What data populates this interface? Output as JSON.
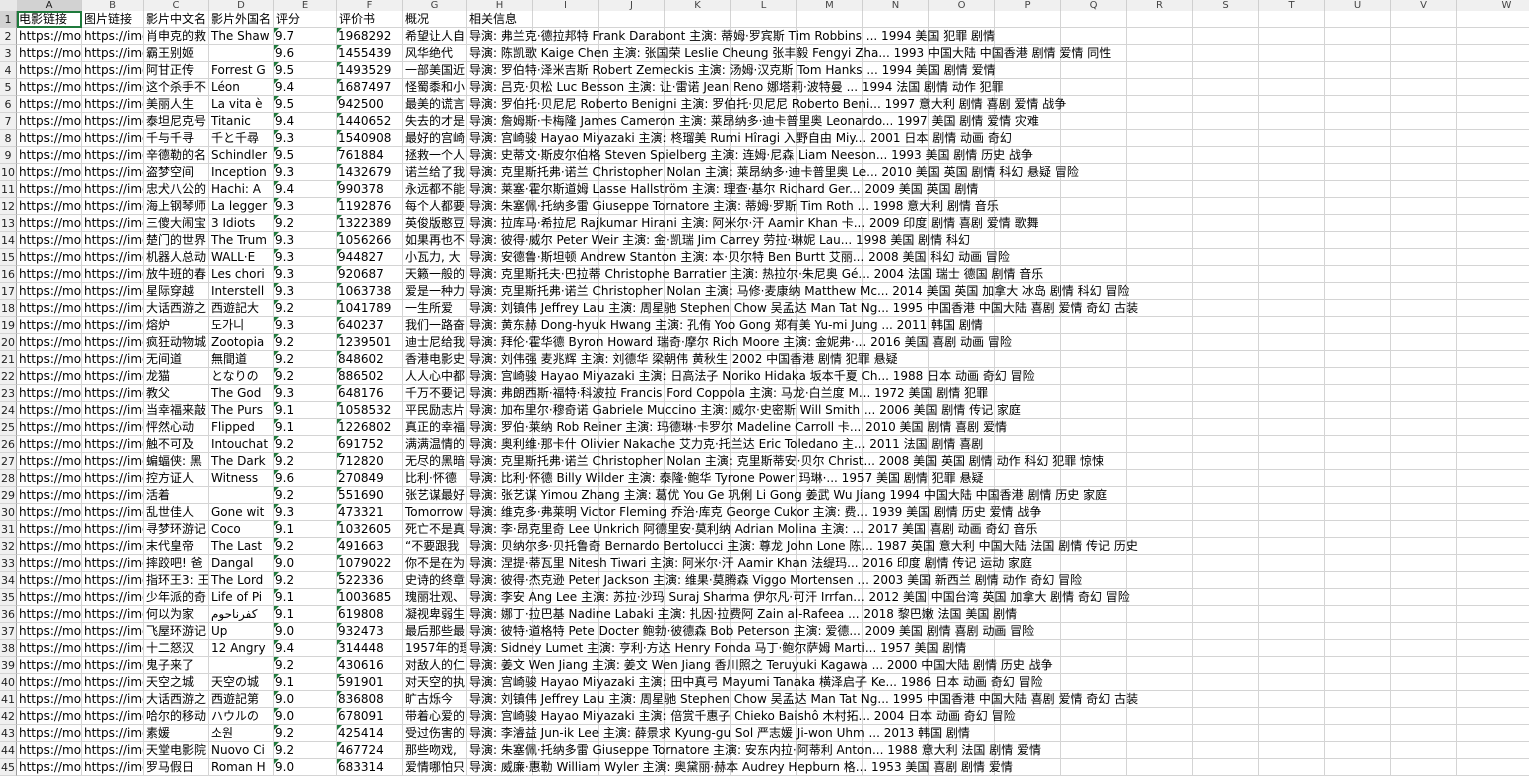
{
  "columns": [
    "A",
    "B",
    "C",
    "D",
    "E",
    "F",
    "G",
    "H",
    "I",
    "J",
    "K",
    "L",
    "M",
    "N",
    "O",
    "P",
    "Q",
    "R",
    "S",
    "T",
    "U",
    "V",
    "W"
  ],
  "header_row": [
    "电影链接",
    "图片链接",
    "影片中文名",
    "影片外国名",
    "评分",
    "评价书",
    "概况",
    "相关信息"
  ],
  "rows": [
    [
      "https://mo",
      "https://img",
      "肖申克的救",
      "The Shaw",
      "9.7",
      "1968292",
      "希望让人自",
      "导演: 弗兰克·德拉邦特 Frank Darabont   主演: 蒂姆·罗宾斯 Tim Robbins ...  1994  美国  犯罪 剧情"
    ],
    [
      "https://mo",
      "https://img",
      "霸王别姬",
      "",
      "9.6",
      "1455439",
      "风华绝代",
      "导演: 陈凯歌 Kaige Chen   主演: 张国荣 Leslie Cheung  张丰毅 Fengyi Zha...  1993  中国大陆 中国香港  剧情 爱情 同性"
    ],
    [
      "https://mo",
      "https://img",
      "阿甘正传",
      "Forrest G",
      "9.5",
      "1493529",
      "一部美国近",
      "导演: 罗伯特·泽米吉斯 Robert Zemeckis   主演: 汤姆·汉克斯 Tom Hanks  ...  1994  美国  剧情 爱情"
    ],
    [
      "https://mo",
      "https://img",
      "这个杀手不",
      "Léon",
      "9.4",
      "1687497",
      "怪蜀黍和小",
      "导演: 吕克·贝松 Luc Besson   主演: 让·雷诺 Jean Reno  娜塔莉·波特曼 ...  1994  法国  剧情 动作 犯罪"
    ],
    [
      "https://mo",
      "https://img",
      "美丽人生",
      "La vita è",
      "9.5",
      "942500",
      "最美的谎言",
      "导演: 罗伯托·贝尼尼 Roberto Benigni   主演: 罗伯托·贝尼尼 Roberto Beni...  1997  意大利  剧情 喜剧 爱情 战争"
    ],
    [
      "https://mo",
      "https://img",
      "泰坦尼克号",
      "Titanic",
      "9.4",
      "1440652",
      "失去的才是",
      "导演: 詹姆斯·卡梅隆 James Cameron   主演: 莱昂纳多·迪卡普里奥 Leonardo...  1997  美国  剧情 爱情 灾难"
    ],
    [
      "https://mo",
      "https://img",
      "千与千寻",
      "千と千尋",
      "9.3",
      "1540908",
      "最好的宫崎",
      "导演: 宫崎骏 Hayao Miyazaki   主演: 柊瑠美 Rumi Hîragi  入野自由 Miy...  2001  日本  剧情 动画 奇幻"
    ],
    [
      "https://mo",
      "https://img",
      "辛德勒的名",
      "Schindler",
      "9.5",
      "761884",
      "拯救一个人",
      "导演: 史蒂文·斯皮尔伯格 Steven Spielberg   主演: 连姆·尼森 Liam Neeson...  1993  美国  剧情 历史 战争"
    ],
    [
      "https://mo",
      "https://img",
      "盗梦空间",
      "Inception",
      "9.3",
      "1432679",
      "诺兰给了我",
      "导演: 克里斯托弗·诺兰 Christopher Nolan   主演: 莱昂纳多·迪卡普里奥 Le...  2010  美国 英国  剧情 科幻 悬疑 冒险"
    ],
    [
      "https://mo",
      "https://img",
      "忠犬八公的",
      "Hachi: A",
      "9.4",
      "990378",
      "永远都不能",
      "导演: 莱塞·霍尔斯道姆 Lasse Hallström   主演: 理查·基尔 Richard Ger...  2009  美国 英国  剧情"
    ],
    [
      "https://mo",
      "https://img",
      "海上钢琴师",
      "La legger",
      "9.3",
      "1192876",
      "每个人都要",
      "导演: 朱塞佩·托纳多雷 Giuseppe Tornatore   主演: 蒂姆·罗斯 Tim Roth  ...  1998  意大利  剧情 音乐"
    ],
    [
      "https://mo",
      "https://img",
      "三傻大闹宝",
      "3 Idiots",
      "9.2",
      "1322389",
      "英俊版憨豆",
      "导演: 拉库马·希拉尼 Rajkumar Hirani   主演: 阿米尔·汗 Aamir Khan  卡...  2009  印度  剧情 喜剧 爱情 歌舞"
    ],
    [
      "https://mo",
      "https://img",
      "楚门的世界",
      "The Trum",
      "9.3",
      "1056266",
      "如果再也不",
      "导演: 彼得·威尔 Peter Weir   主演: 金·凯瑞 Jim Carrey  劳拉·琳妮 Lau...  1998  美国  剧情 科幻"
    ],
    [
      "https://mo",
      "https://img",
      "机器人总动",
      "WALL·E",
      "9.3",
      "944827",
      "小瓦力, 大",
      "导演: 安德鲁·斯坦顿 Andrew Stanton   主演: 本·贝尔特 Ben Burtt  艾丽...  2008  美国  科幻 动画 冒险"
    ],
    [
      "https://mo",
      "https://img",
      "放牛班的春",
      "Les chori",
      "9.3",
      "920687",
      "天籁一般的",
      "导演: 克里斯托夫·巴拉蒂 Christophe Barratier   主演: 热拉尔·朱尼奥 Gé...  2004  法国 瑞士 德国  剧情 音乐"
    ],
    [
      "https://mo",
      "https://img",
      "星际穿越",
      "Interstell",
      "9.3",
      "1063738",
      "爱是一种力",
      "导演: 克里斯托弗·诺兰 Christopher Nolan   主演: 马修·麦康纳 Matthew Mc...  2014  美国 英国 加拿大 冰岛  剧情 科幻 冒险"
    ],
    [
      "https://mo",
      "https://img",
      "大话西游之",
      "西遊記大",
      "9.2",
      "1041789",
      "一生所爱",
      "导演: 刘镇伟 Jeffrey Lau   主演: 周星驰 Stephen Chow  吴孟达 Man Tat Ng...  1995  中国香港 中国大陆  喜剧 爱情 奇幻 古装"
    ],
    [
      "https://mo",
      "https://img",
      "熔炉",
      "도가니",
      "9.3",
      "640237",
      "我们一路奋",
      "导演: 黄东赫 Dong-hyuk Hwang   主演: 孔侑 Yoo Gong  郑有美 Yu-mi Jung ...  2011  韩国  剧情"
    ],
    [
      "https://mo",
      "https://img",
      "疯狂动物城",
      "Zootopia",
      "9.2",
      "1239501",
      "迪士尼给我",
      "导演: 拜伦·霍华德 Byron Howard  瑞奇·摩尔 Rich Moore   主演: 金妮弗·...  2016  美国  喜剧 动画 冒险"
    ],
    [
      "https://mo",
      "https://img",
      "无间道",
      "無間道",
      "9.2",
      "848602",
      "香港电影史",
      "导演: 刘伟强  麦兆辉   主演: 刘德华  梁朝伟  黄秋生  2002  中国香港  剧情 犯罪 悬疑"
    ],
    [
      "https://mo",
      "https://img",
      "龙猫",
      "となりの",
      "9.2",
      "886502",
      "人人心中都",
      "导演: 宫崎骏 Hayao Miyazaki   主演: 日高法子 Noriko Hidaka  坂本千夏 Ch...  1988  日本  动画 奇幻 冒险"
    ],
    [
      "https://mo",
      "https://img",
      "教父",
      "The God",
      "9.3",
      "648176",
      "千万不要记",
      "导演: 弗朗西斯·福特·科波拉 Francis Ford Coppola   主演: 马龙·白兰度 M...  1972  美国  剧情 犯罪"
    ],
    [
      "https://mo",
      "https://img",
      "当幸福来敲",
      "The Purs",
      "9.1",
      "1058532",
      "平民励志片",
      "导演: 加布里尔·穆奇诺 Gabriele Muccino   主演: 威尔·史密斯 Will Smith ...  2006  美国  剧情 传记 家庭"
    ],
    [
      "https://mo",
      "https://img",
      "怦然心动",
      "Flipped",
      "9.1",
      "1226802",
      "真正的幸福",
      "导演: 罗伯·莱纳 Rob Reiner   主演: 玛德琳·卡罗尔 Madeline Carroll  卡...  2010  美国  剧情 喜剧 爱情"
    ],
    [
      "https://mo",
      "https://img",
      "触不可及",
      "Intouchat",
      "9.2",
      "691752",
      "满满温情的",
      "导演: 奥利维·那卡什 Olivier Nakache  艾力克·托兰达 Eric Toledano   主...  2011  法国  剧情 喜剧"
    ],
    [
      "https://mo",
      "https://img",
      "蝙蝠侠: 黑",
      "The Dark",
      "9.2",
      "712820",
      "无尽的黑暗",
      "导演: 克里斯托弗·诺兰 Christopher Nolan   主演: 克里斯蒂安·贝尔 Christ...  2008  美国 英国  剧情 动作 科幻 犯罪 惊悚"
    ],
    [
      "https://mo",
      "https://img",
      "控方证人",
      "Witness",
      "9.6",
      "270849",
      "比利·怀德",
      "导演: 比利·怀德 Billy Wilder   主演: 泰隆·鲍华 Tyrone Power  玛琳·...  1957  美国  剧情 犯罪 悬疑"
    ],
    [
      "https://mo",
      "https://img",
      "活着",
      "",
      "9.2",
      "551690",
      "张艺谋最好",
      "导演: 张艺谋 Yimou Zhang   主演: 葛优 You Ge  巩俐 Li Gong  姜武 Wu Jiang  1994  中国大陆 中国香港  剧情 历史 家庭"
    ],
    [
      "https://mo",
      "https://img",
      "乱世佳人",
      "Gone wit",
      "9.3",
      "473321",
      "Tomorrow",
      "导演: 维克多·弗莱明 Victor Fleming  乔治·库克 George Cukor   主演: 费...  1939  美国  剧情 历史 爱情 战争"
    ],
    [
      "https://mo",
      "https://img",
      "寻梦环游记",
      "Coco",
      "9.1",
      "1032605",
      "死亡不是真",
      "导演: 李·昂克里奇 Lee Unkrich  阿德里安·莫利纳 Adrian Molina   主演: ...  2017  美国  喜剧 动画 奇幻 音乐"
    ],
    [
      "https://mo",
      "https://img",
      "末代皇帝",
      "The Last",
      "9.2",
      "491663",
      "“不要跟我",
      "导演: 贝纳尔多·贝托鲁奇 Bernardo Bertolucci   主演: 尊龙 John Lone  陈...  1987  英国 意大利 中国大陆 法国  剧情 传记 历史"
    ],
    [
      "https://mo",
      "https://img",
      "摔跤吧! 爸",
      "Dangal",
      "9.0",
      "1079022",
      "你不是在为",
      "导演: 涅提·蒂瓦里 Nitesh Tiwari   主演: 阿米尔·汗 Aamir Khan  法缇玛...  2016  印度  剧情 传记 运动 家庭"
    ],
    [
      "https://mo",
      "https://img",
      "指环王3: 王",
      "The Lord",
      "9.2",
      "522336",
      "史诗的终章",
      "导演: 彼得·杰克逊 Peter Jackson   主演: 维果·莫腾森 Viggo Mortensen  ...  2003  美国 新西兰  剧情 动作 奇幻 冒险"
    ],
    [
      "https://mo",
      "https://img",
      "少年派的奇",
      "Life of Pi",
      "9.1",
      "1003685",
      "瑰丽壮观、",
      "导演: 李安 Ang Lee   主演: 苏拉·沙玛 Suraj Sharma  伊尔凡·可汗 Irrfan...  2012  美国 中国台湾 英国 加拿大  剧情 奇幻 冒险"
    ],
    [
      "https://mo",
      "https://img",
      "何以为家",
      "كفرناحوم",
      "9.1",
      "619808",
      "凝视卑弱生",
      "导演: 娜丁·拉巴基 Nadine Labaki   主演: 扎因·拉费阿 Zain al-Rafeea  ...  2018  黎巴嫩 法国 美国  剧情"
    ],
    [
      "https://mo",
      "https://img",
      "飞屋环游记",
      "Up",
      "9.0",
      "932473",
      "最后那些最",
      "导演: 彼特·道格特 Pete Docter  鲍勃·彼德森 Bob Peterson   主演: 爱德...  2009  美国  剧情 喜剧 动画 冒险"
    ],
    [
      "https://mo",
      "https://img",
      "十二怒汉",
      "12 Angry",
      "9.4",
      "314448",
      "1957年的理",
      "导演: Sidney Lumet   主演: 亨利·方达 Henry Fonda  马丁·鲍尔萨姆 Marti...  1957  美国  剧情"
    ],
    [
      "https://mo",
      "https://img",
      "鬼子来了",
      "",
      "9.2",
      "430616",
      "对敌人的仁",
      "导演: 姜文 Wen Jiang   主演: 姜文 Wen Jiang  香川照之 Teruyuki Kagawa ...  2000  中国大陆  剧情 历史 战争"
    ],
    [
      "https://mo",
      "https://img",
      "天空之城",
      "天空の城",
      "9.1",
      "591901",
      "对天空的执",
      "导演: 宫崎骏 Hayao Miyazaki   主演: 田中真弓 Mayumi Tanaka  横泽启子 Ke...  1986  日本  动画 奇幻 冒险"
    ],
    [
      "https://mo",
      "https://img",
      "大话西游之",
      "西遊記第",
      "9.0",
      "836808",
      "旷古烁今",
      "导演: 刘镇伟 Jeffrey Lau   主演: 周星驰 Stephen Chow  吴孟达 Man Tat Ng...  1995  中国香港 中国大陆  喜剧 爱情 奇幻 古装"
    ],
    [
      "https://mo",
      "https://img",
      "哈尔的移动",
      "ハウルの",
      "9.0",
      "678091",
      "带着心爱的",
      "导演: 宫崎骏 Hayao Miyazaki   主演: 倍赏千惠子 Chieko Baishô  木村拓...  2004  日本  动画 奇幻 冒险"
    ],
    [
      "https://mo",
      "https://img",
      "素媛",
      "소원",
      "9.2",
      "425414",
      "受过伤害的",
      "导演: 李濬益 Jun-ik Lee   主演: 薛景求 Kyung-gu Sol  严志媛 Ji-won Uhm ...  2013  韩国  剧情"
    ],
    [
      "https://mo",
      "https://img",
      "天堂电影院",
      "Nuovo Ci",
      "9.2",
      "467724",
      "那些吻戏,",
      "导演: 朱塞佩·托纳多雷 Giuseppe Tornatore   主演: 安东内拉·阿蒂利 Anton...  1988  意大利 法国  剧情 爱情"
    ],
    [
      "https://mo",
      "https://img",
      "罗马假日",
      "Roman H",
      "9.0",
      "683314",
      "爱情哪怕只",
      "导演: 威廉·惠勒 William Wyler   主演: 奥黛丽·赫本 Audrey Hepburn  格...  1953  美国  喜剧 剧情 爱情"
    ]
  ]
}
